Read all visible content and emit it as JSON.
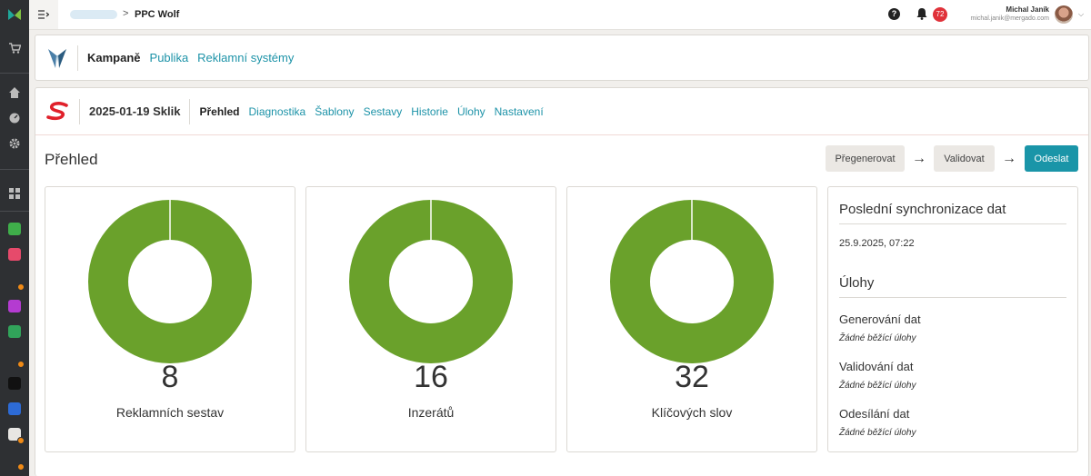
{
  "topbar": {
    "breadcrumb_current": "PPC Wolf",
    "breadcrumb_separator": ">",
    "help_glyph": "?",
    "notification_count": "72",
    "user_name": "Michal Janík",
    "user_email": "michal.janik@mergado.com"
  },
  "app_nav": {
    "items": [
      "Kampaně",
      "Publika",
      "Reklamní systémy"
    ]
  },
  "campaign_nav": {
    "campaign_name": "2025-01-19 Sklik",
    "tabs": [
      "Přehled",
      "Diagnostika",
      "Šablony",
      "Sestavy",
      "Historie",
      "Úlohy",
      "Nastavení"
    ]
  },
  "overview": {
    "title": "Přehled",
    "actions": {
      "regenerate": "Přegenerovat",
      "validate": "Validovat",
      "send": "Odeslat"
    },
    "stats": [
      {
        "value": "8",
        "label": "Reklamních sestav",
        "fraction": 1.0
      },
      {
        "value": "16",
        "label": "Inzerátů",
        "fraction": 1.0
      },
      {
        "value": "32",
        "label": "Klíčových slov",
        "fraction": 1.0
      }
    ],
    "donut_color": "#6aa12b"
  },
  "sync_panel": {
    "title": "Poslední synchronizace dat",
    "timestamp": "25.9.2025, 07:22",
    "tasks_title": "Úlohy",
    "tasks": [
      {
        "name": "Generování dat",
        "status": "Žádné běžící úlohy"
      },
      {
        "name": "Validování dat",
        "status": "Žádné běžící úlohy"
      },
      {
        "name": "Odesílání dat",
        "status": "Žádné běžící úlohy"
      }
    ]
  },
  "colors": {
    "accent": "#1a95a8",
    "link": "#1d93a8",
    "sidebar": "#2e3033",
    "notification": "#e0323a",
    "sklik_red": "#e0202a"
  }
}
